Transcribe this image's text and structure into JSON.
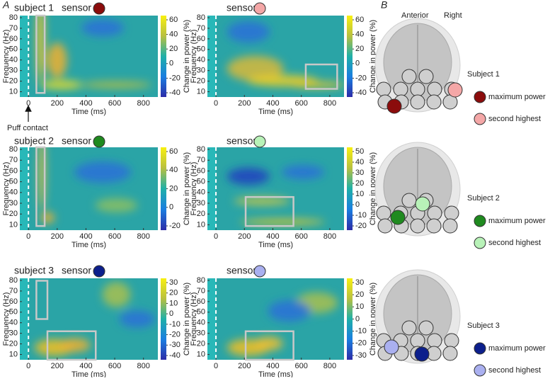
{
  "figure_labels": {
    "a": "A",
    "b": "B"
  },
  "axis_labels": {
    "y": "Frequency (Hz)",
    "x": "Time (ms)",
    "colorbar": "Change in power (%)"
  },
  "xticks": [
    0,
    200,
    400,
    600,
    800
  ],
  "yticks": [
    80,
    70,
    60,
    50,
    40,
    30,
    20,
    10
  ],
  "xlim": [
    -60,
    900
  ],
  "ylim": [
    5,
    82
  ],
  "sensor_label": "sensor",
  "annotation": "Puff contact",
  "panels": [
    {
      "subject": "subject 1",
      "colorbar_ticks": [
        60,
        40,
        20,
        0,
        -20,
        -40
      ]
    },
    {
      "colorbar_ticks": [
        60,
        40,
        20,
        0,
        -20,
        -40
      ]
    },
    {
      "subject": "subject 2",
      "colorbar_ticks": [
        60,
        40,
        20,
        0,
        -20
      ]
    },
    {
      "colorbar_ticks": [
        50,
        40,
        30,
        20,
        10,
        0,
        -10,
        -20
      ]
    },
    {
      "subject": "subject 3",
      "colorbar_ticks": [
        30,
        20,
        10,
        0,
        -10,
        -20,
        -30,
        -40
      ]
    },
    {
      "colorbar_ticks": [
        30,
        20,
        10,
        0,
        -10,
        -20,
        -30
      ]
    }
  ],
  "head_labels": {
    "anterior": "Anterior",
    "right": "Right"
  },
  "subjects": [
    {
      "title": "Subject 1",
      "max_color": "#8b0c0c",
      "second_color": "#f4a7a7"
    },
    {
      "title": "Subject 2",
      "max_color": "#1f8a1f",
      "second_color": "#b8f2b8"
    },
    {
      "title": "Subject 3",
      "max_color": "#0c1f8c",
      "second_color": "#aab0f0"
    }
  ],
  "legend": {
    "max": "maximum power",
    "second": "second highest"
  }
}
